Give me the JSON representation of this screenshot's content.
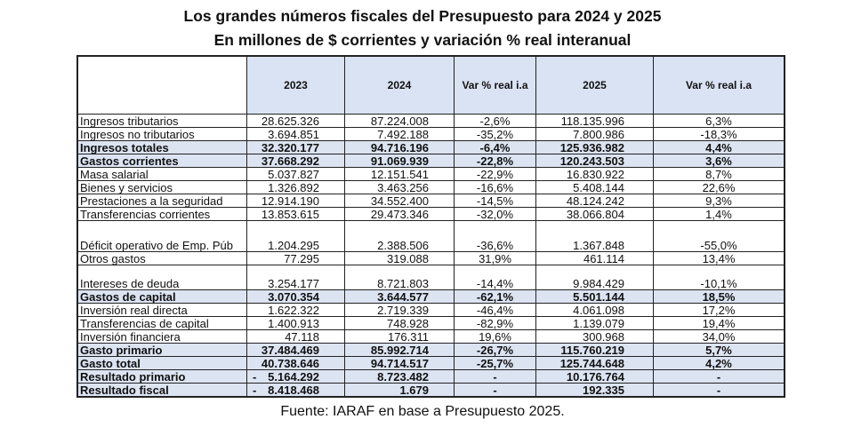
{
  "title_line1": "Los grandes números fiscales del Presupuesto para 2024 y 2025",
  "title_line2": "En millones de $ corrientes y variación % real interanual",
  "columns": [
    "",
    "2023",
    "2024",
    "Var % real i.a",
    "2025",
    "Var % real i.a"
  ],
  "rows": [
    {
      "label": "Ingresos tributarios",
      "y2023": "28.625.326",
      "y2024": "87.224.008",
      "var2024": "-2,6%",
      "y2025": "118.135.996",
      "var2025": "6,3%",
      "bold": false
    },
    {
      "label": "Ingresos no tributarios",
      "y2023": "3.694.851",
      "y2024": "7.492.188",
      "var2024": "-35,2%",
      "y2025": "7.800.986",
      "var2025": "-18,3%",
      "bold": false
    },
    {
      "label": "Ingresos totales",
      "y2023": "32.320.177",
      "y2024": "94.716.196",
      "var2024": "-6,4%",
      "y2025": "125.936.982",
      "var2025": "4,4%",
      "bold": true
    },
    {
      "label": "Gastos corrientes",
      "y2023": "37.668.292",
      "y2024": "91.069.939",
      "var2024": "-22,8%",
      "y2025": "120.243.503",
      "var2025": "3,6%",
      "bold": true
    },
    {
      "label": "Masa salarial",
      "y2023": "5.037.827",
      "y2024": "12.151.541",
      "var2024": "-22,9%",
      "y2025": "16.830.922",
      "var2025": "8,7%",
      "bold": false
    },
    {
      "label": "Bienes y servicios",
      "y2023": "1.326.892",
      "y2024": "3.463.256",
      "var2024": "-16,6%",
      "y2025": "5.408.144",
      "var2025": "22,6%",
      "bold": false
    },
    {
      "label": "Prestaciones a la seguridad",
      "y2023": "12.914.190",
      "y2024": "34.552.400",
      "var2024": "-14,5%",
      "y2025": "48.124.242",
      "var2025": "9,3%",
      "bold": false
    },
    {
      "label": "Transferencias corrientes",
      "y2023": "13.853.615",
      "y2024": "29.473.346",
      "var2024": "-32,0%",
      "y2025": "38.066.804",
      "var2025": "1,4%",
      "bold": false
    },
    {
      "label": "Déficit operativo de Emp. Púb",
      "y2023": "1.204.295",
      "y2024": "2.388.506",
      "var2024": "-36,6%",
      "y2025": "1.367.848",
      "var2025": "-55,0%",
      "bold": false,
      "tall": 1
    },
    {
      "label": "Otros gastos",
      "y2023": "77.295",
      "y2024": "319.088",
      "var2024": "31,9%",
      "y2025": "461.114",
      "var2025": "13,4%",
      "bold": false
    },
    {
      "label": "Intereses de deuda",
      "y2023": "3.254.177",
      "y2024": "8.721.803",
      "var2024": "-14,4%",
      "y2025": "9.984.429",
      "var2025": "-10,1%",
      "bold": false,
      "tall": 2
    },
    {
      "label": "Gastos de capital",
      "y2023": "3.070.354",
      "y2024": "3.644.577",
      "var2024": "-62,1%",
      "y2025": "5.501.144",
      "var2025": "18,5%",
      "bold": true
    },
    {
      "label": "Inversión real directa",
      "y2023": "1.622.322",
      "y2024": "2.719.339",
      "var2024": "-46,4%",
      "y2025": "4.061.098",
      "var2025": "17,2%",
      "bold": false
    },
    {
      "label": "Transferencias de capital",
      "y2023": "1.400.913",
      "y2024": "748.928",
      "var2024": "-82,9%",
      "y2025": "1.139.079",
      "var2025": "19,4%",
      "bold": false
    },
    {
      "label": "Inversión financiera",
      "y2023": "47.118",
      "y2024": "176.311",
      "var2024": "19,6%",
      "y2025": "300.968",
      "var2025": "34,0%",
      "bold": false
    },
    {
      "label": "Gasto primario",
      "y2023": "37.484.469",
      "y2024": "85.992.714",
      "var2024": "-26,7%",
      "y2025": "115.760.219",
      "var2025": "5,7%",
      "bold": true
    },
    {
      "label": "Gasto total",
      "y2023": "40.738.646",
      "y2024": "94.714.517",
      "var2024": "-25,7%",
      "y2025": "125.744.648",
      "var2025": "4,2%",
      "bold": true
    },
    {
      "label": "Resultado primario",
      "y2023_sign": "-",
      "y2023": "5.164.292",
      "y2024": "8.723.482",
      "var2024": "-",
      "y2025": "10.176.764",
      "var2025": "-",
      "bold": true
    },
    {
      "label": "Resultado fiscal",
      "y2023_sign": "-",
      "y2023": "8.418.468",
      "y2024": "1.679",
      "var2024": "-",
      "y2025": "192.335",
      "var2025": "-",
      "bold": true
    }
  ],
  "footer": "Fuente: IARAF en base a Presupuesto 2025.",
  "colors": {
    "header_bg": "#dae3f3",
    "bold_row_bg": "#dce4f2",
    "border": "#222222"
  }
}
